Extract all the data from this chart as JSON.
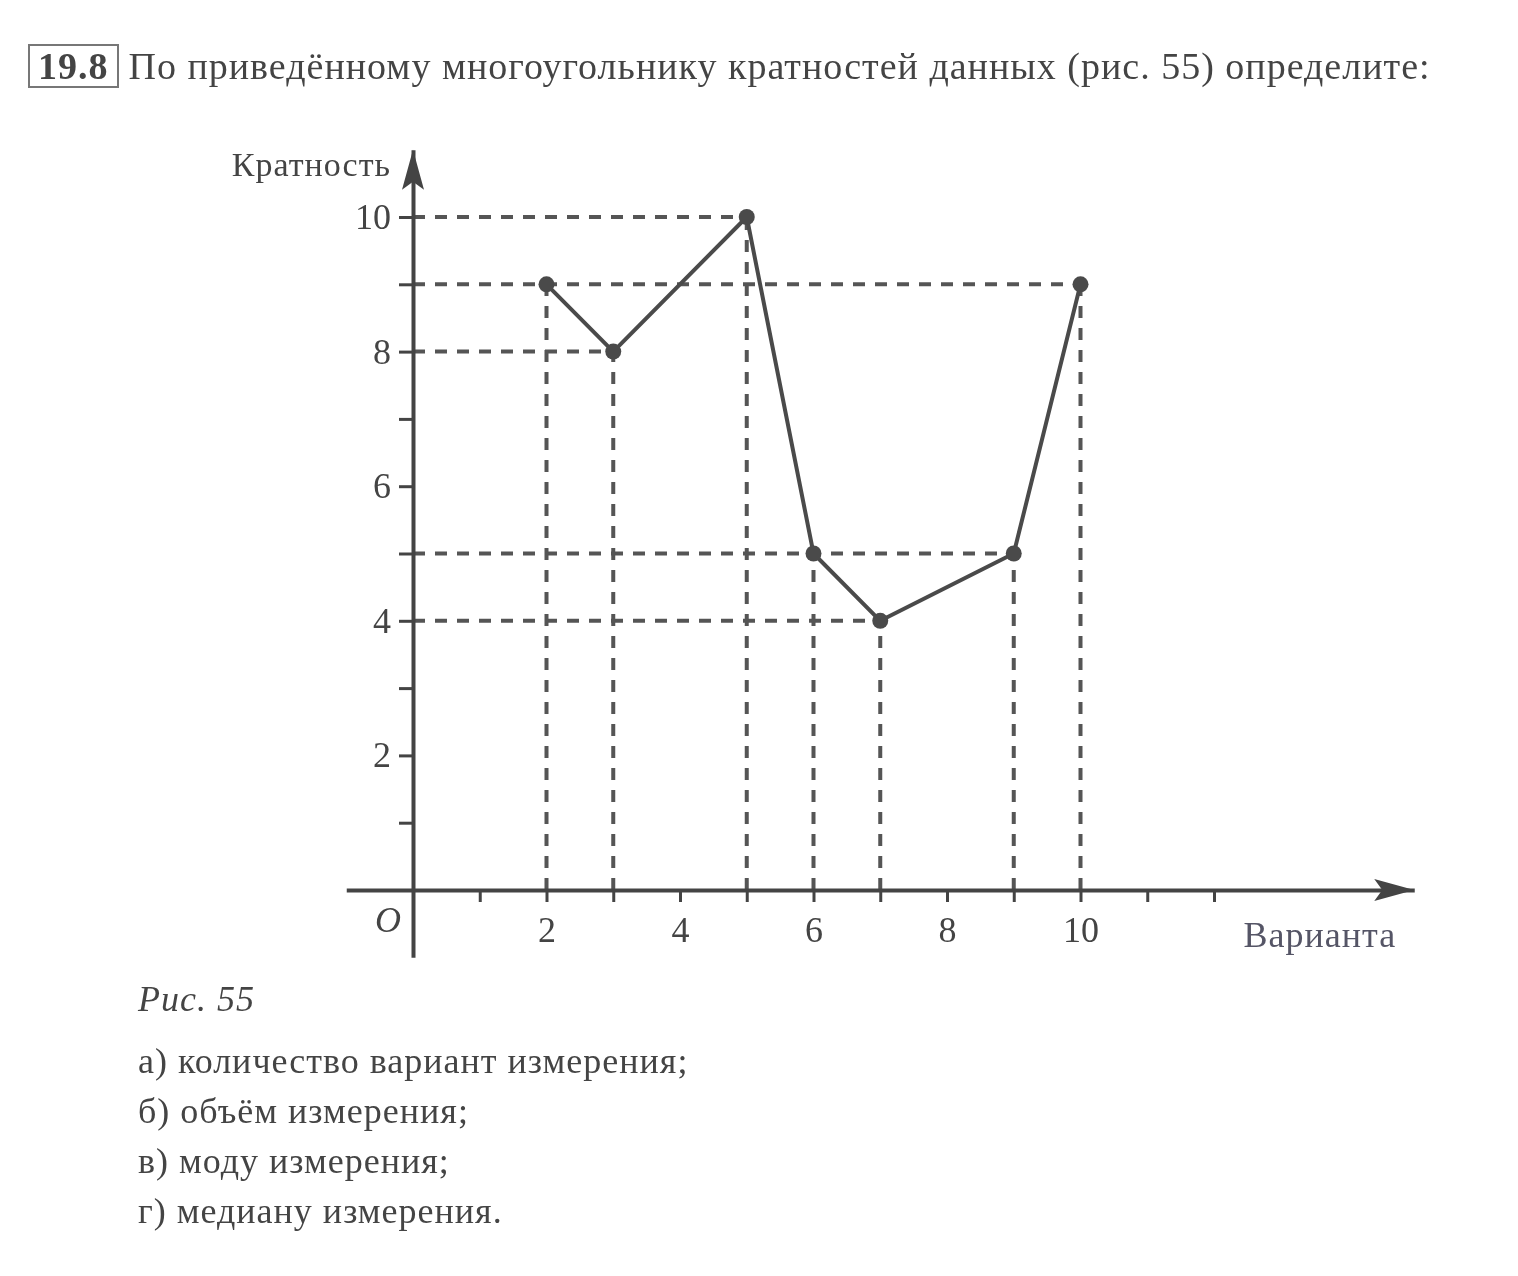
{
  "chart_data": {
    "type": "line",
    "title": "19.8 По приведённому многоугольнику кратностей данных (рис. 55) определите:",
    "xlabel": "Варианта",
    "ylabel": "Кратность",
    "x": [
      2,
      3,
      5,
      6,
      7,
      9,
      10
    ],
    "series": [
      {
        "color": "#4a4a4a",
        "values": [
          9,
          8,
          10,
          5,
          4,
          5,
          9
        ]
      }
    ],
    "xlim": [
      -1,
      15
    ],
    "ylim": [
      -1,
      11
    ],
    "xticks": [
      {
        "value": 1,
        "label": null
      },
      2,
      {
        "value": 3,
        "label": null
      },
      4,
      {
        "value": 5,
        "label": null
      },
      6,
      {
        "value": 7,
        "label": null
      },
      8,
      {
        "value": 9,
        "label": null
      },
      10,
      {
        "value": 11,
        "label": null
      },
      {
        "value": 12,
        "label": null
      }
    ],
    "yticks": [
      {
        "value": 1,
        "label": null
      },
      2,
      {
        "value": 3,
        "label": null
      },
      4,
      {
        "value": 5,
        "label": null
      },
      6,
      {
        "value": 7,
        "label": null
      },
      8,
      {
        "value": 9,
        "label": null
      },
      10
    ],
    "ref_lines": [
      {
        "axis": "y",
        "value": 10,
        "line_style": "dashed",
        "color": "#555555"
      },
      {
        "axis": "y",
        "value": 9,
        "line_style": "dashed",
        "color": "#555555"
      },
      {
        "axis": "y",
        "value": 8,
        "line_style": "dashed",
        "color": "#555555"
      },
      {
        "axis": "y",
        "value": 5,
        "line_style": "dashed",
        "color": "#555555"
      },
      {
        "axis": "y",
        "value": 4,
        "line_style": "dashed",
        "color": "#555555"
      },
      {
        "axis": "x",
        "value": 2,
        "line_style": "dashed",
        "color": "#555555"
      },
      {
        "axis": "x",
        "value": 3,
        "line_style": "dashed",
        "color": "#555555"
      },
      {
        "axis": "x",
        "value": 5,
        "line_style": "dashed",
        "color": "#555555"
      },
      {
        "axis": "x",
        "value": 6,
        "line_style": "dashed",
        "color": "#555555"
      },
      {
        "axis": "x",
        "value": 7,
        "line_style": "dashed",
        "color": "#555555"
      },
      {
        "axis": "x",
        "value": 9,
        "line_style": "dashed",
        "color": "#555555"
      },
      {
        "axis": "x",
        "value": 10,
        "line_style": "dashed",
        "color": "#555555"
      }
    ],
    "marker": "circle",
    "line_style": "solid",
    "grid": false,
    "annotations": [
      "O",
      "Рис. 55",
      "а) количество вариант измерения;",
      "б) объём измерения;",
      "в) моду измерения;",
      "г) медиану измерения."
    ]
  }
}
